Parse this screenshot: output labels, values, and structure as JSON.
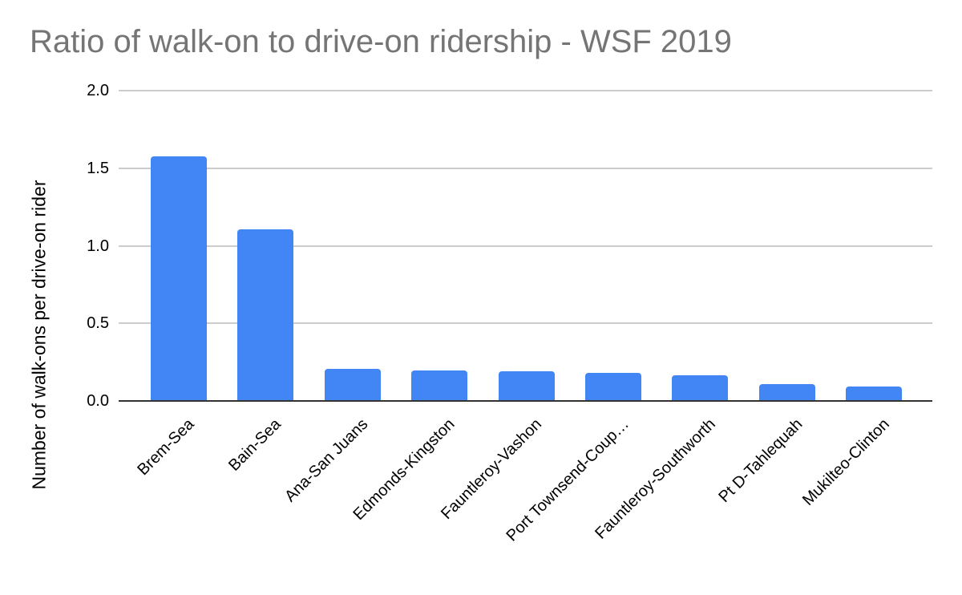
{
  "chart_data": {
    "type": "bar",
    "title": "Ratio of walk-on to drive-on ridership - WSF 2019",
    "ylabel": "Number of walk-ons per drive-on rider",
    "xlabel": "",
    "categories": [
      "Brem-Sea",
      "Bain-Sea",
      "Ana-San Juans",
      "Edmonds-Kingston",
      "Fauntleroy-Vashon",
      "Port Townsend-Coup…",
      "Fauntleroy-Southworth",
      "Pt D-Tahlequah",
      "Mukilteo-Clinton"
    ],
    "values": [
      1.57,
      1.1,
      0.2,
      0.19,
      0.185,
      0.175,
      0.16,
      0.105,
      0.09
    ],
    "ytick_labels": [
      "0.0",
      "0.5",
      "1.0",
      "1.5",
      "2.0"
    ],
    "ytick_values": [
      0,
      0.5,
      1,
      1.5,
      2
    ],
    "ylim": [
      0,
      2
    ],
    "grid": true,
    "legend": "none",
    "bar_color": "#4285f4",
    "colors": {
      "title": "#757575",
      "axis_text": "#000000",
      "gridline": "#cccccc",
      "baseline": "#333333",
      "background": "#ffffff"
    }
  }
}
